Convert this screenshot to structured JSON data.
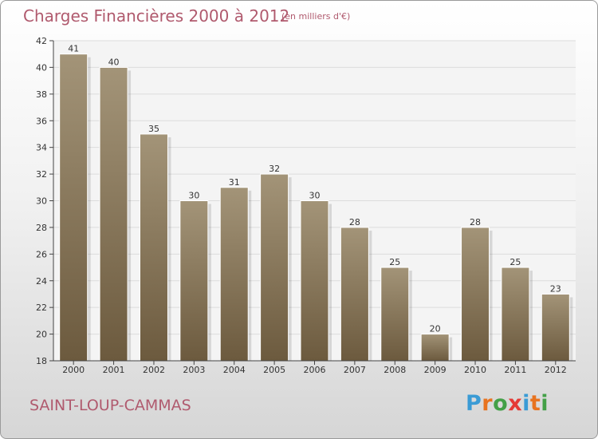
{
  "header": {
    "title": "Charges Financières 2000 à 2012",
    "subtitle": "(en milliers d'€)"
  },
  "footer": {
    "city": "SAINT-LOUP-CAMMAS",
    "logo": "Proxiti",
    "logo_colors": [
      "#3a9bd5",
      "#e8731f",
      "#43a047",
      "#e53935",
      "#3a9bd5",
      "#e8731f",
      "#43a047"
    ]
  },
  "colors": {
    "bar_top": "#a39478",
    "bar_bottom": "#6c5a3e",
    "accent": "#b05a6e",
    "plot_bg": "#f4f4f4"
  },
  "chart_data": {
    "type": "bar",
    "categories": [
      "2000",
      "2001",
      "2002",
      "2003",
      "2004",
      "2005",
      "2006",
      "2007",
      "2008",
      "2009",
      "2010",
      "2011",
      "2012"
    ],
    "values": [
      41,
      40,
      35,
      30,
      31,
      32,
      30,
      28,
      25,
      20,
      28,
      25,
      23
    ],
    "ylim": [
      18,
      42
    ],
    "yticks": [
      18,
      20,
      22,
      24,
      26,
      28,
      30,
      32,
      34,
      36,
      38,
      40,
      42
    ],
    "grid": true,
    "legend": "none",
    "data_labels": true
  }
}
